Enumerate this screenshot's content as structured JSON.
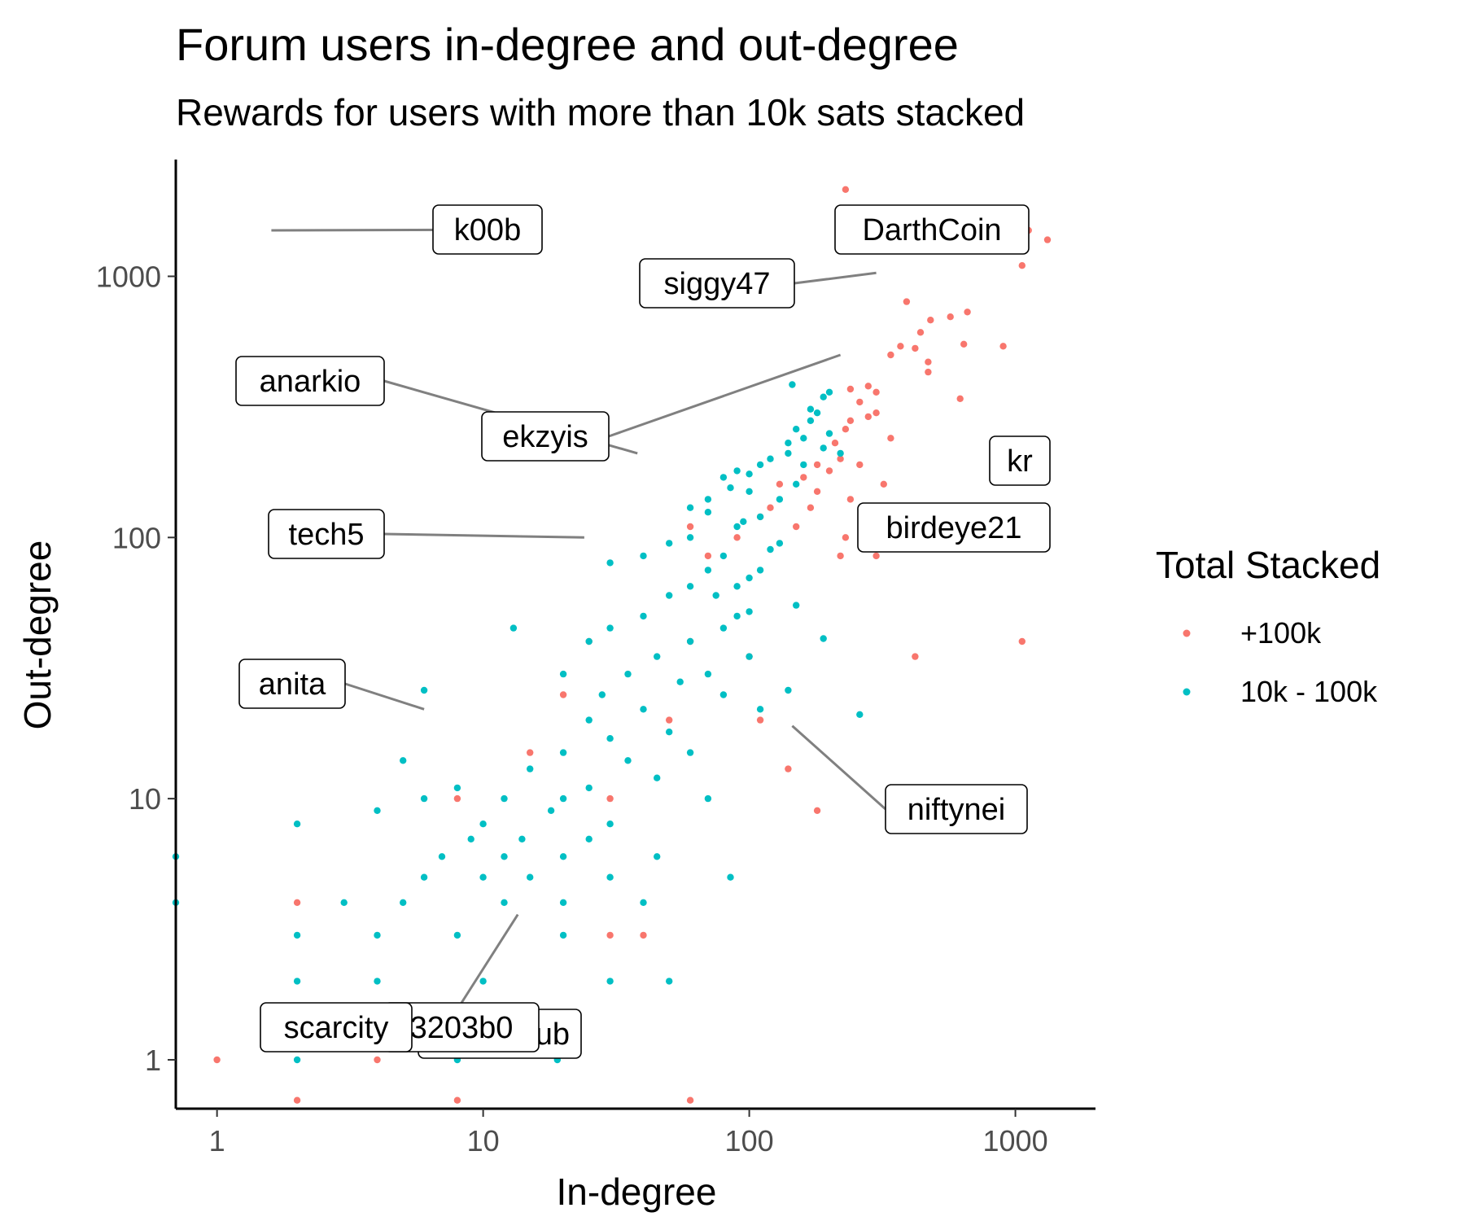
{
  "chart_data": {
    "type": "scatter",
    "title": "Forum users in-degree and out-degree",
    "subtitle": "Rewards for users with more than 10k sats stacked",
    "xlabel": "In-degree",
    "ylabel": "Out-degree",
    "x_scale": "log10",
    "y_scale": "log10",
    "xlim": [
      0.7,
      2000
    ],
    "ylim": [
      0.65,
      2800
    ],
    "x_ticks": [
      1,
      10,
      100,
      1000
    ],
    "x_tick_labels": [
      "1",
      "10",
      "100",
      "1000"
    ],
    "y_ticks": [
      1,
      10,
      100,
      1000
    ],
    "y_tick_labels": [
      "1",
      "10",
      "100",
      "1000"
    ],
    "grid": false,
    "legend": {
      "title": "Total Stacked",
      "placement": "right"
    },
    "series": [
      {
        "name": "+100k",
        "color": "#F8766D",
        "points": [
          [
            230,
            2150
          ],
          [
            1120,
            1500
          ],
          [
            1320,
            1380
          ],
          [
            1060,
            1100
          ],
          [
            390,
            800
          ],
          [
            480,
            680
          ],
          [
            570,
            700
          ],
          [
            660,
            730
          ],
          [
            440,
            610
          ],
          [
            640,
            550
          ],
          [
            370,
            540
          ],
          [
            420,
            530
          ],
          [
            340,
            500
          ],
          [
            470,
            470
          ],
          [
            470,
            430
          ],
          [
            900,
            540
          ],
          [
            280,
            380
          ],
          [
            240,
            370
          ],
          [
            300,
            360
          ],
          [
            260,
            330
          ],
          [
            300,
            300
          ],
          [
            280,
            290
          ],
          [
            240,
            280
          ],
          [
            230,
            260
          ],
          [
            340,
            240
          ],
          [
            620,
            340
          ],
          [
            210,
            230
          ],
          [
            220,
            200
          ],
          [
            260,
            190
          ],
          [
            180,
            190
          ],
          [
            160,
            170
          ],
          [
            200,
            180
          ],
          [
            320,
            160
          ],
          [
            130,
            160
          ],
          [
            180,
            150
          ],
          [
            240,
            140
          ],
          [
            170,
            130
          ],
          [
            120,
            130
          ],
          [
            110,
            120
          ],
          [
            150,
            110
          ],
          [
            230,
            100
          ],
          [
            270,
            95
          ],
          [
            420,
            95
          ],
          [
            90,
            100
          ],
          [
            220,
            85
          ],
          [
            300,
            85
          ],
          [
            60,
            110
          ],
          [
            70,
            85
          ],
          [
            60,
            40
          ],
          [
            100,
            35
          ],
          [
            420,
            35
          ],
          [
            1060,
            40
          ],
          [
            110,
            20
          ],
          [
            140,
            13
          ],
          [
            180,
            9
          ],
          [
            25,
            40
          ],
          [
            20,
            25
          ],
          [
            15,
            15
          ],
          [
            8,
            10
          ],
          [
            30,
            10
          ],
          [
            50,
            20
          ],
          [
            30,
            3
          ],
          [
            40,
            3
          ],
          [
            2,
            4
          ],
          [
            4,
            1
          ],
          [
            1,
            1
          ],
          [
            2,
            0.7
          ],
          [
            8,
            0.7
          ],
          [
            60,
            0.7
          ]
        ]
      },
      {
        "name": "10k - 100k",
        "color": "#00BFC4",
        "points": [
          [
            200,
            360
          ],
          [
            180,
            300
          ],
          [
            170,
            280
          ],
          [
            200,
            250
          ],
          [
            160,
            240
          ],
          [
            140,
            230
          ],
          [
            190,
            220
          ],
          [
            220,
            210
          ],
          [
            120,
            200
          ],
          [
            110,
            190
          ],
          [
            90,
            180
          ],
          [
            80,
            170
          ],
          [
            150,
            160
          ],
          [
            100,
            150
          ],
          [
            130,
            140
          ],
          [
            70,
            140
          ],
          [
            60,
            130
          ],
          [
            110,
            120
          ],
          [
            90,
            110
          ],
          [
            60,
            100
          ],
          [
            50,
            95
          ],
          [
            120,
            90
          ],
          [
            80,
            85
          ],
          [
            40,
            85
          ],
          [
            30,
            80
          ],
          [
            70,
            75
          ],
          [
            100,
            70
          ],
          [
            60,
            65
          ],
          [
            50,
            60
          ],
          [
            150,
            55
          ],
          [
            90,
            50
          ],
          [
            40,
            50
          ],
          [
            80,
            45
          ],
          [
            30,
            45
          ],
          [
            25,
            40
          ],
          [
            60,
            40
          ],
          [
            100,
            35
          ],
          [
            45,
            35
          ],
          [
            35,
            30
          ],
          [
            70,
            30
          ],
          [
            20,
            30
          ],
          [
            55,
            28
          ],
          [
            28,
            25
          ],
          [
            80,
            25
          ],
          [
            110,
            22
          ],
          [
            40,
            22
          ],
          [
            25,
            20
          ],
          [
            50,
            18
          ],
          [
            30,
            17
          ],
          [
            60,
            15
          ],
          [
            20,
            15
          ],
          [
            35,
            14
          ],
          [
            15,
            13
          ],
          [
            45,
            12
          ],
          [
            25,
            11
          ],
          [
            70,
            10
          ],
          [
            20,
            10
          ],
          [
            12,
            10
          ],
          [
            18,
            9
          ],
          [
            30,
            8
          ],
          [
            10,
            8
          ],
          [
            14,
            7
          ],
          [
            25,
            7
          ],
          [
            9,
            7
          ],
          [
            12,
            6
          ],
          [
            20,
            6
          ],
          [
            45,
            6
          ],
          [
            7,
            6
          ],
          [
            15,
            5
          ],
          [
            30,
            5
          ],
          [
            85,
            5
          ],
          [
            6,
            5
          ],
          [
            10,
            5
          ],
          [
            20,
            4
          ],
          [
            40,
            4
          ],
          [
            12,
            4
          ],
          [
            5,
            4
          ],
          [
            3,
            4
          ],
          [
            8,
            3
          ],
          [
            20,
            3
          ],
          [
            4,
            3
          ],
          [
            2,
            3
          ],
          [
            50,
            2
          ],
          [
            30,
            2
          ],
          [
            10,
            2
          ],
          [
            4,
            2
          ],
          [
            2,
            2
          ],
          [
            8,
            1
          ],
          [
            19,
            1
          ],
          [
            2,
            1
          ],
          [
            0.7,
            6
          ],
          [
            0.7,
            4
          ],
          [
            2,
            8
          ],
          [
            4,
            9
          ],
          [
            6,
            10
          ],
          [
            5,
            14
          ],
          [
            8,
            11
          ],
          [
            13,
            45
          ],
          [
            6,
            26
          ],
          [
            190,
            41
          ],
          [
            140,
            26
          ],
          [
            260,
            21
          ],
          [
            100,
            52
          ],
          [
            75,
            60
          ],
          [
            90,
            65
          ],
          [
            110,
            75
          ],
          [
            130,
            95
          ],
          [
            95,
            115
          ],
          [
            70,
            125
          ],
          [
            85,
            155
          ],
          [
            100,
            175
          ],
          [
            140,
            210
          ],
          [
            160,
            190
          ],
          [
            150,
            260
          ],
          [
            170,
            310
          ],
          [
            190,
            345
          ],
          [
            145,
            385
          ]
        ]
      }
    ],
    "annotations": [
      {
        "label": "DarthCoin",
        "x": 240,
        "y": 1480
      },
      {
        "label": "k00b",
        "x": 1.6,
        "y": 1500
      },
      {
        "label": "siggy47",
        "x": 300,
        "y": 1030
      },
      {
        "label": "anarkio",
        "x": 38,
        "y": 210
      },
      {
        "label": "ekzyis",
        "x": 220,
        "y": 500
      },
      {
        "label": "kr",
        "x": 1300,
        "y": 190
      },
      {
        "label": "birdeye21",
        "x": 450,
        "y": 95
      },
      {
        "label": "tech5",
        "x": 24,
        "y": 100
      },
      {
        "label": "anita",
        "x": 6,
        "y": 22
      },
      {
        "label": "niftynei",
        "x": 145,
        "y": 19
      },
      {
        "label": "scarcity",
        "x": 2.5,
        "y": 1.15
      },
      {
        "label": "ub",
        "x": 10,
        "y": 1.05
      },
      {
        "label": "3203b0",
        "x": 13.5,
        "y": 3.6
      }
    ]
  }
}
